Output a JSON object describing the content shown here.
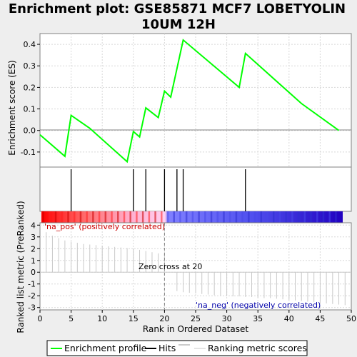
{
  "colors": {
    "es_line": "#00ff00",
    "hits": "#000000",
    "pos_text": "#cc0000",
    "neg_text": "#0000aa",
    "zero_cross": "#808080",
    "ranking_line": "#c8c8c8"
  },
  "chart_data": {
    "type": "line",
    "title_line1": "Enrichment plot: GSE85871 MCF7 LOBETYOLIN",
    "title_line2": "10UM 12H",
    "xlabel": "Rank in Ordered Dataset",
    "es_ylabel": "Enrichment score (ES)",
    "rank_ylabel": "Ranked list metric (PreRanked)",
    "xlim": [
      0,
      50
    ],
    "es_ylim": [
      -0.17,
      0.45
    ],
    "rank_ylim": [
      -3.2,
      4.2
    ],
    "x_ticks": [
      0,
      5,
      10,
      15,
      20,
      25,
      30,
      35,
      40,
      45,
      50
    ],
    "x_tick_labels": [
      "0",
      "5",
      "10",
      "15",
      "20",
      "25",
      "30",
      "35",
      "40",
      "45",
      "50"
    ],
    "es_ticks": [
      -0.1,
      0.0,
      0.1,
      0.2,
      0.3,
      0.4
    ],
    "es_tick_labels": [
      "-0.1",
      "0.0",
      "0.1",
      "0.2",
      "0.3",
      "0.4"
    ],
    "rank_ticks": [
      -3,
      -2,
      -1,
      0,
      1,
      2,
      3,
      4
    ],
    "rank_tick_labels": [
      "-3",
      "-2",
      "-1",
      "0",
      "1",
      "2",
      "3",
      "4"
    ],
    "enrichment_profile": {
      "x": [
        0,
        4,
        5,
        8,
        14,
        15,
        16,
        17,
        19,
        20,
        21,
        23,
        32,
        33,
        42,
        48
      ],
      "y": [
        -0.02,
        -0.12,
        0.07,
        0.01,
        -0.145,
        -0.005,
        -0.03,
        0.105,
        0.06,
        0.183,
        0.155,
        0.42,
        0.2,
        0.358,
        0.125,
        0.0
      ]
    },
    "hits": [
      5,
      15,
      17,
      20,
      22,
      23,
      33
    ],
    "ranking_metric": {
      "x": [
        0,
        1,
        2,
        3,
        4,
        5,
        6,
        7,
        8,
        9,
        10,
        11,
        12,
        13,
        14,
        15,
        16,
        17,
        18,
        19,
        20,
        21,
        22,
        23,
        24,
        25,
        26,
        27,
        28,
        29,
        30,
        31,
        32,
        33,
        34,
        35,
        36,
        37,
        38,
        39,
        40,
        41,
        42,
        43,
        44,
        45,
        46,
        47,
        48
      ],
      "y": [
        3.4,
        3.1,
        2.9,
        2.7,
        2.6,
        2.5,
        2.4,
        2.35,
        2.3,
        2.25,
        2.2,
        2.15,
        2.1,
        2.05,
        2.0,
        1.9,
        1.8,
        1.7,
        1.6,
        1.5,
        0,
        -1.6,
        -1.7,
        -1.75,
        -1.8,
        -1.85,
        -1.9,
        -1.95,
        -2.0,
        -2.0,
        -2.05,
        -2.05,
        -2.1,
        -2.1,
        -2.15,
        -2.2,
        -2.2,
        -2.25,
        -2.3,
        -2.35,
        -2.4,
        -2.45,
        -2.5,
        -2.55,
        -2.6,
        -2.65,
        -2.7,
        -2.75,
        -2.8
      ]
    },
    "zero_cross_x": 20,
    "annotations": {
      "pos": "'na_pos' (positively correlated)",
      "neg": "'na_neg' (negatively correlated)",
      "zero_cross": "Zero cross at 20"
    },
    "legend": {
      "placement": "bottom",
      "items": [
        "Enrichment profile",
        "Hits",
        "Ranking metric scores"
      ]
    }
  }
}
